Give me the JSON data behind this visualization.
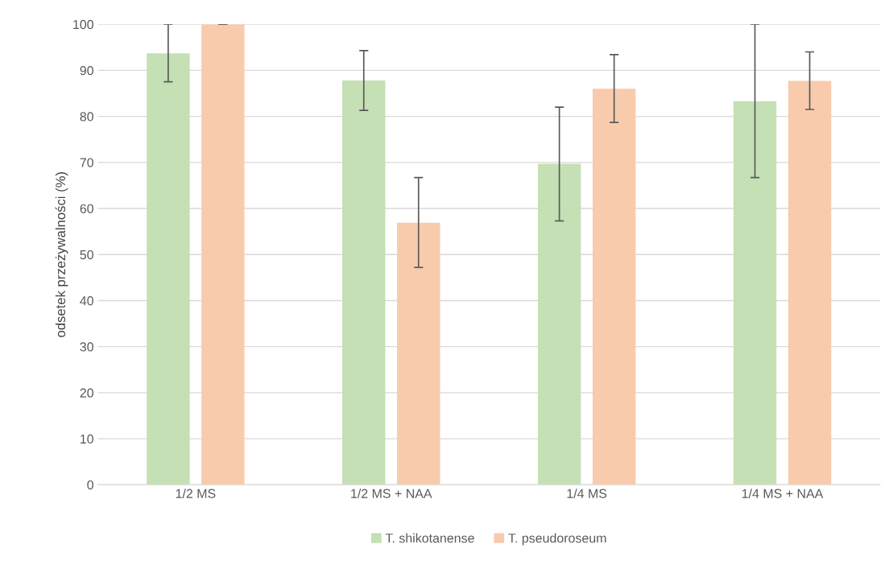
{
  "chart_data": {
    "type": "bar",
    "ylabel": "odsetek przeżywalności (%)",
    "categories": [
      "1/2 MS",
      "1/2 MS + NAA",
      "1/4 MS",
      "1/4 MS + NAA"
    ],
    "series": [
      {
        "name": "T. shikotanense",
        "color": "#c5e0b4",
        "values": [
          93.7,
          87.8,
          69.7,
          83.3
        ],
        "errors": [
          [
            87.5,
            100
          ],
          [
            81.3,
            94.3
          ],
          [
            57.3,
            82
          ],
          [
            66.7,
            100
          ]
        ]
      },
      {
        "name": "T. pseudoroseum",
        "color": "#f8cbad",
        "values": [
          100,
          56.9,
          86,
          87.7
        ],
        "errors": [
          [
            100,
            100
          ],
          [
            47.2,
            66.7
          ],
          [
            78.7,
            93.4
          ],
          [
            81.5,
            94
          ]
        ]
      }
    ],
    "ylim": [
      0,
      100
    ],
    "yticks": [
      0,
      10,
      20,
      30,
      40,
      50,
      60,
      70,
      80,
      90,
      100
    ],
    "grid": "y",
    "legend": "bottom"
  }
}
